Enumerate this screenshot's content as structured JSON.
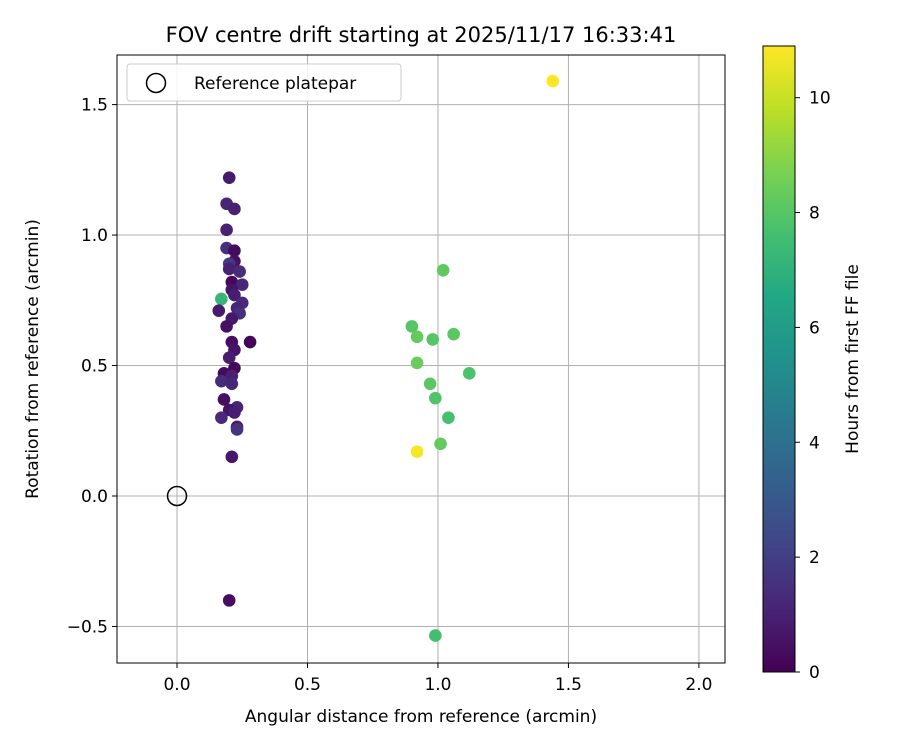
{
  "chart_data": {
    "type": "scatter",
    "title": "FOV centre drift starting at 2025/11/17 16:33:41",
    "xlabel": "Angular distance from reference (arcmin)",
    "ylabel": "Rotation from reference (arcmin)",
    "xlim": [
      -0.23,
      2.1
    ],
    "ylim": [
      -0.64,
      1.69
    ],
    "xticks": [
      0.0,
      0.5,
      1.0,
      1.5,
      2.0
    ],
    "xtick_labels": [
      "0.0",
      "0.5",
      "1.0",
      "1.5",
      "2.0"
    ],
    "yticks": [
      -0.5,
      0.0,
      0.5,
      1.0,
      1.5
    ],
    "ytick_labels": [
      "−0.5",
      "0.0",
      "0.5",
      "1.0",
      "1.5"
    ],
    "grid": true,
    "legend": {
      "position": "top-left",
      "entries": [
        {
          "label": "Reference platepar",
          "marker": "open-circle"
        }
      ]
    },
    "reference_point": {
      "x": 0.0,
      "y": 0.0,
      "label": "Reference platepar"
    },
    "colorbar": {
      "label": "Hours from first FF file",
      "min": 0,
      "max": 10.9,
      "ticks": [
        0,
        2,
        4,
        6,
        8,
        10
      ],
      "tick_labels": [
        "0",
        "2",
        "4",
        "6",
        "8",
        "10"
      ],
      "colormap": "viridis"
    },
    "points": [
      {
        "x": 0.2,
        "y": 1.22,
        "h": 0.8
      },
      {
        "x": 0.19,
        "y": 1.12,
        "h": 1.2
      },
      {
        "x": 0.22,
        "y": 1.1,
        "h": 1.0
      },
      {
        "x": 0.19,
        "y": 1.02,
        "h": 1.0
      },
      {
        "x": 0.19,
        "y": 0.95,
        "h": 1.5
      },
      {
        "x": 0.22,
        "y": 0.94,
        "h": 0.3
      },
      {
        "x": 0.22,
        "y": 0.9,
        "h": 0.5
      },
      {
        "x": 0.2,
        "y": 0.89,
        "h": 1.8
      },
      {
        "x": 0.2,
        "y": 0.87,
        "h": 1.0
      },
      {
        "x": 0.24,
        "y": 0.86,
        "h": 1.4
      },
      {
        "x": 0.21,
        "y": 0.82,
        "h": 0.2
      },
      {
        "x": 0.25,
        "y": 0.81,
        "h": 1.2
      },
      {
        "x": 0.21,
        "y": 0.79,
        "h": 0.6
      },
      {
        "x": 0.22,
        "y": 0.77,
        "h": 0.9
      },
      {
        "x": 0.17,
        "y": 0.755,
        "h": 7.2
      },
      {
        "x": 0.25,
        "y": 0.74,
        "h": 1.3
      },
      {
        "x": 0.23,
        "y": 0.72,
        "h": 1.1
      },
      {
        "x": 0.16,
        "y": 0.71,
        "h": 0.8
      },
      {
        "x": 0.24,
        "y": 0.7,
        "h": 1.5
      },
      {
        "x": 0.21,
        "y": 0.68,
        "h": 0.7
      },
      {
        "x": 0.19,
        "y": 0.65,
        "h": 0.5
      },
      {
        "x": 0.21,
        "y": 0.59,
        "h": 0.4
      },
      {
        "x": 0.28,
        "y": 0.59,
        "h": 0.1
      },
      {
        "x": 0.22,
        "y": 0.56,
        "h": 0.6
      },
      {
        "x": 0.2,
        "y": 0.53,
        "h": 0.9
      },
      {
        "x": 0.22,
        "y": 0.49,
        "h": 0.2
      },
      {
        "x": 0.18,
        "y": 0.47,
        "h": 0.3
      },
      {
        "x": 0.21,
        "y": 0.46,
        "h": 1.0
      },
      {
        "x": 0.17,
        "y": 0.44,
        "h": 1.4
      },
      {
        "x": 0.21,
        "y": 0.43,
        "h": 1.2
      },
      {
        "x": 0.18,
        "y": 0.37,
        "h": 0.5
      },
      {
        "x": 0.23,
        "y": 0.34,
        "h": 1.1
      },
      {
        "x": 0.2,
        "y": 0.33,
        "h": 0.6
      },
      {
        "x": 0.22,
        "y": 0.32,
        "h": 0.9
      },
      {
        "x": 0.17,
        "y": 0.3,
        "h": 1.3
      },
      {
        "x": 0.23,
        "y": 0.265,
        "h": 0.8
      },
      {
        "x": 0.23,
        "y": 0.255,
        "h": 1.6
      },
      {
        "x": 0.21,
        "y": 0.15,
        "h": 0.7
      },
      {
        "x": 0.2,
        "y": -0.4,
        "h": 0.4
      },
      {
        "x": 1.02,
        "y": 0.865,
        "h": 8.2
      },
      {
        "x": 0.9,
        "y": 0.65,
        "h": 8.0
      },
      {
        "x": 1.06,
        "y": 0.62,
        "h": 8.1
      },
      {
        "x": 0.92,
        "y": 0.61,
        "h": 8.3
      },
      {
        "x": 0.98,
        "y": 0.6,
        "h": 8.0
      },
      {
        "x": 0.92,
        "y": 0.51,
        "h": 8.4
      },
      {
        "x": 1.12,
        "y": 0.47,
        "h": 7.8
      },
      {
        "x": 0.97,
        "y": 0.43,
        "h": 8.1
      },
      {
        "x": 0.99,
        "y": 0.375,
        "h": 7.9
      },
      {
        "x": 1.04,
        "y": 0.3,
        "h": 7.7
      },
      {
        "x": 1.01,
        "y": 0.2,
        "h": 8.3
      },
      {
        "x": 0.92,
        "y": 0.17,
        "h": 10.8
      },
      {
        "x": 0.99,
        "y": -0.535,
        "h": 7.6
      },
      {
        "x": 1.44,
        "y": 1.59,
        "h": 10.9
      }
    ]
  }
}
